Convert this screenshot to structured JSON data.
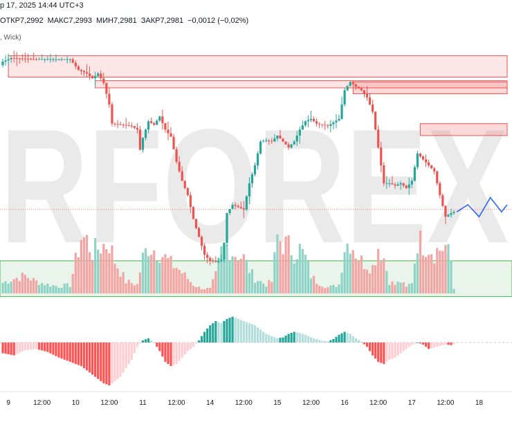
{
  "header": {
    "date_text": "р 17, 2025 14:44 UTC+3",
    "open_text": "ОТКР7,2992",
    "high_text": "МАКС7,2993",
    "low_text": "МИН7,2981",
    "close_text": "ЗАКР7,2981",
    "change_text": "−0,0012 (−0,02%)",
    "indicator_text": ", Wick)"
  },
  "watermark": {
    "text": "RFOREX",
    "color": "#d9d9d9",
    "accent_color": "#f3c2c2"
  },
  "colors": {
    "up": "#26a69a",
    "down": "#ef5350",
    "up_volume": "#8fd3c6",
    "down_volume": "#f4a4a3",
    "zone_red": "#ef5350",
    "zone_green": "#4caf50",
    "projection": "#2962ff",
    "hist_up_strong": "#26a69a",
    "hist_up_weak": "#b2dfdb",
    "hist_down_strong": "#ff5252",
    "hist_down_weak": "#ffcdd2"
  },
  "x_axis": {
    "labels": [
      {
        "text": "9",
        "index": 2
      },
      {
        "text": "12:00",
        "index": 14
      },
      {
        "text": "10",
        "index": 26
      },
      {
        "text": "12:00",
        "index": 38
      },
      {
        "text": "11",
        "index": 50
      },
      {
        "text": "12:00",
        "index": 62
      },
      {
        "text": "14",
        "index": 74
      },
      {
        "text": "12:00",
        "index": 86
      },
      {
        "text": "15",
        "index": 98
      },
      {
        "text": "12:00",
        "index": 110
      },
      {
        "text": "16",
        "index": 122
      },
      {
        "text": "12:00",
        "index": 134
      },
      {
        "text": "17",
        "index": 146
      },
      {
        "text": "12:00",
        "index": 158
      },
      {
        "text": "18",
        "index": 170
      }
    ]
  },
  "chart_data": [
    {
      "type": "candlestick",
      "title": "",
      "ylim": [
        7.286,
        7.307
      ],
      "candle_count": 162,
      "price_sequence": [
        [
          0,
          7.3052
        ],
        [
          3,
          7.3055
        ],
        [
          12,
          7.3054
        ],
        [
          24,
          7.3054
        ],
        [
          27,
          7.3045
        ],
        [
          30,
          7.3042
        ],
        [
          32,
          7.3038
        ],
        [
          34,
          7.3042
        ],
        [
          36,
          7.3034
        ],
        [
          38,
          7.3016
        ],
        [
          39,
          7.3
        ],
        [
          46,
          7.2998
        ],
        [
          48,
          7.2995
        ],
        [
          49,
          7.2978
        ],
        [
          50,
          7.2988
        ],
        [
          52,
          7.3002
        ],
        [
          54,
          7.2999
        ],
        [
          56,
          7.3006
        ],
        [
          58,
          7.2995
        ],
        [
          60,
          7.2989
        ],
        [
          62,
          7.2968
        ],
        [
          64,
          7.2952
        ],
        [
          66,
          7.294
        ],
        [
          68,
          7.292
        ],
        [
          70,
          7.2905
        ],
        [
          72,
          7.289
        ],
        [
          74,
          7.2885
        ],
        [
          76,
          7.2884
        ],
        [
          78,
          7.2886
        ],
        [
          79,
          7.29
        ],
        [
          80,
          7.2925
        ],
        [
          82,
          7.2932
        ],
        [
          84,
          7.293
        ],
        [
          86,
          7.2928
        ],
        [
          88,
          7.295
        ],
        [
          90,
          7.2965
        ],
        [
          92,
          7.2985
        ],
        [
          94,
          7.2986
        ],
        [
          96,
          7.2985
        ],
        [
          98,
          7.299
        ],
        [
          100,
          7.2985
        ],
        [
          102,
          7.298
        ],
        [
          104,
          7.2985
        ],
        [
          106,
          7.2995
        ],
        [
          108,
          7.3002
        ],
        [
          110,
          7.3004
        ],
        [
          112,
          7.3
        ],
        [
          114,
          7.2999
        ],
        [
          116,
          7.2998
        ],
        [
          118,
          7.3001
        ],
        [
          120,
          7.3004
        ],
        [
          122,
          7.3028
        ],
        [
          124,
          7.3035
        ],
        [
          126,
          7.3031
        ],
        [
          128,
          7.3028
        ],
        [
          130,
          7.3022
        ],
        [
          132,
          7.301
        ],
        [
          134,
          7.298
        ],
        [
          136,
          7.295
        ],
        [
          138,
          7.295
        ],
        [
          140,
          7.2948
        ],
        [
          142,
          7.295
        ],
        [
          144,
          7.2946
        ],
        [
          146,
          7.2952
        ],
        [
          148,
          7.2975
        ],
        [
          150,
          7.297
        ],
        [
          152,
          7.2965
        ],
        [
          154,
          7.296
        ],
        [
          156,
          7.294
        ],
        [
          158,
          7.2922
        ],
        [
          160,
          7.2925
        ],
        [
          161,
          7.2926
        ]
      ],
      "projection": [
        [
          162,
          7.2926
        ],
        [
          166,
          7.2932
        ],
        [
          170,
          7.2922
        ],
        [
          174,
          7.2938
        ],
        [
          178,
          7.2926
        ],
        [
          180,
          7.2932
        ]
      ],
      "zones_supply": [
        {
          "from_index": 2,
          "to_index": 180,
          "top": 7.3057,
          "bottom": 7.3039,
          "shade": "light"
        },
        {
          "from_index": 33,
          "to_index": 180,
          "top": 7.3036,
          "bottom": 7.303,
          "shade": "light"
        },
        {
          "from_index": 125,
          "to_index": 180,
          "top": 7.3035,
          "bottom": 7.3025,
          "shade": "strong"
        },
        {
          "from_index": 149,
          "to_index": 180,
          "top": 7.3,
          "bottom": 7.299,
          "shade": "strong"
        }
      ],
      "zone_demand": {
        "from_index": 0,
        "to_index": 180,
        "top": 7.2885,
        "bottom": 7.2855
      },
      "reference_level": 7.2928
    },
    {
      "type": "bar",
      "title": "",
      "series": [
        {
          "name": "",
          "values_by_candle": "volume",
          "max": 100
        }
      ],
      "volume_sequence": [
        [
          0,
          18
        ],
        [
          4,
          25
        ],
        [
          8,
          30
        ],
        [
          12,
          20
        ],
        [
          16,
          15
        ],
        [
          20,
          12
        ],
        [
          24,
          14
        ],
        [
          28,
          95
        ],
        [
          30,
          90
        ],
        [
          32,
          70
        ],
        [
          35,
          80
        ],
        [
          38,
          85
        ],
        [
          40,
          55
        ],
        [
          44,
          20
        ],
        [
          48,
          15
        ],
        [
          50,
          60
        ],
        [
          52,
          80
        ],
        [
          54,
          75
        ],
        [
          56,
          70
        ],
        [
          58,
          60
        ],
        [
          60,
          50
        ],
        [
          62,
          45
        ],
        [
          64,
          35
        ],
        [
          66,
          25
        ],
        [
          68,
          15
        ],
        [
          70,
          10
        ],
        [
          72,
          8
        ],
        [
          74,
          8
        ],
        [
          76,
          30
        ],
        [
          78,
          70
        ],
        [
          80,
          80
        ],
        [
          82,
          70
        ],
        [
          84,
          65
        ],
        [
          86,
          60
        ],
        [
          88,
          40
        ],
        [
          90,
          25
        ],
        [
          92,
          20
        ],
        [
          94,
          15
        ],
        [
          96,
          20
        ],
        [
          98,
          95
        ],
        [
          100,
          85
        ],
        [
          102,
          80
        ],
        [
          104,
          70
        ],
        [
          106,
          75
        ],
        [
          108,
          60
        ],
        [
          110,
          30
        ],
        [
          112,
          20
        ],
        [
          114,
          15
        ],
        [
          116,
          10
        ],
        [
          118,
          12
        ],
        [
          120,
          15
        ],
        [
          122,
          80
        ],
        [
          124,
          90
        ],
        [
          126,
          70
        ],
        [
          128,
          55
        ],
        [
          130,
          50
        ],
        [
          132,
          45
        ],
        [
          134,
          80
        ],
        [
          136,
          60
        ],
        [
          138,
          20
        ],
        [
          140,
          15
        ],
        [
          142,
          20
        ],
        [
          144,
          10
        ],
        [
          146,
          20
        ],
        [
          148,
          90
        ],
        [
          150,
          85
        ],
        [
          152,
          80
        ],
        [
          154,
          70
        ],
        [
          156,
          75
        ],
        [
          158,
          80
        ],
        [
          160,
          55
        ],
        [
          161,
          8
        ]
      ]
    },
    {
      "type": "bar",
      "title": "",
      "ylim": [
        -1,
        1
      ],
      "histogram_sequence": [
        [
          0,
          -0.25
        ],
        [
          4,
          -0.3
        ],
        [
          8,
          -0.18
        ],
        [
          12,
          -0.15
        ],
        [
          16,
          -0.22
        ],
        [
          20,
          -0.35
        ],
        [
          24,
          -0.45
        ],
        [
          28,
          -0.55
        ],
        [
          32,
          -0.75
        ],
        [
          36,
          -0.95
        ],
        [
          38,
          -1.0
        ],
        [
          42,
          -0.8
        ],
        [
          46,
          -0.4
        ],
        [
          48,
          -0.1
        ],
        [
          50,
          0.05
        ],
        [
          52,
          0.1
        ],
        [
          54,
          0.0
        ],
        [
          56,
          -0.2
        ],
        [
          58,
          -0.45
        ],
        [
          60,
          -0.55
        ],
        [
          62,
          -0.5
        ],
        [
          64,
          -0.35
        ],
        [
          66,
          -0.2
        ],
        [
          68,
          -0.1
        ],
        [
          70,
          0.05
        ],
        [
          72,
          0.25
        ],
        [
          74,
          0.4
        ],
        [
          76,
          0.5
        ],
        [
          78,
          0.45
        ],
        [
          80,
          0.55
        ],
        [
          82,
          0.6
        ],
        [
          84,
          0.55
        ],
        [
          86,
          0.5
        ],
        [
          88,
          0.45
        ],
        [
          90,
          0.4
        ],
        [
          92,
          0.3
        ],
        [
          94,
          0.2
        ],
        [
          96,
          0.15
        ],
        [
          98,
          0.1
        ],
        [
          100,
          0.12
        ],
        [
          102,
          0.2
        ],
        [
          104,
          0.25
        ],
        [
          106,
          0.22
        ],
        [
          108,
          0.18
        ],
        [
          110,
          0.12
        ],
        [
          112,
          0.08
        ],
        [
          114,
          0.04
        ],
        [
          116,
          0.03
        ],
        [
          118,
          0.08
        ],
        [
          120,
          0.18
        ],
        [
          122,
          0.25
        ],
        [
          124,
          0.2
        ],
        [
          126,
          0.1
        ],
        [
          128,
          0.02
        ],
        [
          130,
          -0.1
        ],
        [
          132,
          -0.3
        ],
        [
          134,
          -0.45
        ],
        [
          136,
          -0.5
        ],
        [
          138,
          -0.4
        ],
        [
          140,
          -0.35
        ],
        [
          142,
          -0.25
        ],
        [
          144,
          -0.15
        ],
        [
          146,
          -0.05
        ],
        [
          148,
          0.0
        ],
        [
          150,
          -0.05
        ],
        [
          152,
          -0.15
        ],
        [
          154,
          -0.12
        ],
        [
          156,
          -0.08
        ],
        [
          158,
          -0.05
        ],
        [
          160,
          -0.06
        ],
        [
          161,
          -0.04
        ]
      ]
    }
  ]
}
